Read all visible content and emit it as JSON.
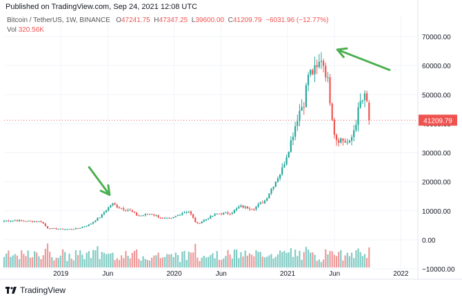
{
  "published": "Published on TradingView.com, Sep 24, 2021 12:08 UTC",
  "legend": {
    "symbol": "Bitcoin / TetherUS, 1W, BINANCE",
    "open_label": "O",
    "open": "47241.75",
    "high_label": "H",
    "high": "47347.25",
    "low_label": "L",
    "low": "39600.00",
    "close_label": "C",
    "close": "41209.79",
    "change": "−6031.96 (−12.77%)"
  },
  "vol_legend": {
    "label": "Vol",
    "value": "320.56K"
  },
  "footer": {
    "brand": "TradingView",
    "logo_icon": "tradingview-logo-icon"
  },
  "colors": {
    "up": "#26a69a",
    "down": "#ef5350",
    "arrow": "#4caf50",
    "vol_up": "#80cbc4",
    "vol_down": "#ef9a9a"
  },
  "chart_data": {
    "type": "candlestick",
    "price_ylim": [
      -10000,
      75000
    ],
    "price_ticks": [
      70000,
      60000,
      50000,
      40000,
      30000,
      20000,
      10000,
      0,
      -10000
    ],
    "price_tick_labels": [
      "70000.00",
      "60000.00",
      "50000.00",
      "40000.00",
      "30000.00",
      "20000.00",
      "10000.00",
      "0.00",
      "−10000.00"
    ],
    "x_ticks": [
      {
        "label": "2019",
        "t": 2019.0
      },
      {
        "label": "Jun",
        "t": 2019.415
      },
      {
        "label": "2020",
        "t": 2020.0
      },
      {
        "label": "Jun",
        "t": 2020.415
      },
      {
        "label": "2021",
        "t": 2021.0
      },
      {
        "label": "Jun",
        "t": 2021.415
      },
      {
        "label": "2022",
        "t": 2022.0
      }
    ],
    "x_range": [
      2018.5,
      2022.15
    ],
    "current_price": 41209.79,
    "current_price_label": "41209.79",
    "price_anchors": [
      [
        2018.5,
        6500
      ],
      [
        2018.6,
        6700
      ],
      [
        2018.68,
        6400
      ],
      [
        2018.83,
        6300
      ],
      [
        2018.88,
        4000
      ],
      [
        2018.95,
        3800
      ],
      [
        2019.05,
        3600
      ],
      [
        2019.15,
        3900
      ],
      [
        2019.25,
        5200
      ],
      [
        2019.35,
        8000
      ],
      [
        2019.45,
        12500
      ],
      [
        2019.52,
        11000
      ],
      [
        2019.6,
        10300
      ],
      [
        2019.68,
        8200
      ],
      [
        2019.8,
        9000
      ],
      [
        2019.9,
        7300
      ],
      [
        2019.97,
        7200
      ],
      [
        2020.08,
        9500
      ],
      [
        2020.13,
        9800
      ],
      [
        2020.2,
        5400
      ],
      [
        2020.3,
        7500
      ],
      [
        2020.38,
        9000
      ],
      [
        2020.5,
        9200
      ],
      [
        2020.58,
        11500
      ],
      [
        2020.7,
        10800
      ],
      [
        2020.8,
        13500
      ],
      [
        2020.87,
        18500
      ],
      [
        2020.95,
        24000
      ],
      [
        2021.03,
        34000
      ],
      [
        2021.1,
        44000
      ],
      [
        2021.15,
        48000
      ],
      [
        2021.18,
        57000
      ],
      [
        2021.26,
        58500
      ],
      [
        2021.3,
        63000
      ],
      [
        2021.35,
        56000
      ],
      [
        2021.38,
        47000
      ],
      [
        2021.42,
        35000
      ],
      [
        2021.48,
        34500
      ],
      [
        2021.55,
        33000
      ],
      [
        2021.6,
        40000
      ],
      [
        2021.64,
        47000
      ],
      [
        2021.68,
        49000
      ],
      [
        2021.7,
        47241.75
      ],
      [
        2021.73,
        41209.79
      ]
    ],
    "arrows": [
      {
        "name": "arrow-2019-peak",
        "from": [
          2019.25,
          25000
        ],
        "to": [
          2019.43,
          15500
        ]
      },
      {
        "name": "arrow-2021-peak",
        "from": [
          2021.9,
          58500
        ],
        "to": [
          2021.44,
          65500
        ]
      }
    ]
  }
}
